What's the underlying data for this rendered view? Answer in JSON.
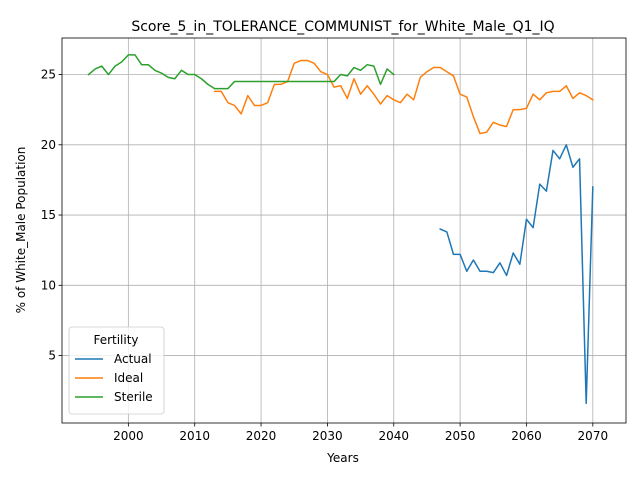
{
  "chart_data": {
    "type": "line",
    "title": "Score_5_in_TOLERANCE_COMMUNIST_for_White_Male_Q1_IQ",
    "xlabel": "Years",
    "ylabel": "% of White_Male Population",
    "xlim": [
      1990,
      2075
    ],
    "ylim": [
      0.2,
      27.6
    ],
    "xticks": [
      2000,
      2010,
      2020,
      2030,
      2040,
      2050,
      2060,
      2070
    ],
    "yticks": [
      5,
      10,
      15,
      20,
      25
    ],
    "grid": true,
    "legend": {
      "title": "Fertility",
      "position": "lower-left"
    },
    "series": [
      {
        "name": "Actual",
        "color": "#1f77b4",
        "x": [
          2047,
          2048,
          2049,
          2050,
          2051,
          2052,
          2053,
          2054,
          2055,
          2056,
          2057,
          2058,
          2059,
          2060,
          2061,
          2062,
          2063,
          2064,
          2065,
          2066,
          2067,
          2068,
          2069,
          2070
        ],
        "y": [
          14.0,
          13.8,
          12.2,
          12.2,
          11.0,
          11.8,
          11.0,
          11.0,
          10.9,
          11.6,
          10.7,
          12.3,
          11.5,
          14.7,
          14.1,
          17.2,
          16.7,
          19.6,
          19.0,
          20.0,
          18.4,
          19.0,
          1.6,
          17.0
        ]
      },
      {
        "name": "Ideal",
        "color": "#ff7f0e",
        "x": [
          2013,
          2014,
          2015,
          2016,
          2017,
          2018,
          2019,
          2020,
          2021,
          2022,
          2023,
          2024,
          2025,
          2026,
          2027,
          2028,
          2029,
          2030,
          2031,
          2032,
          2033,
          2034,
          2035,
          2036,
          2037,
          2038,
          2039,
          2040,
          2041,
          2042,
          2043,
          2044,
          2045,
          2046,
          2047,
          2048,
          2049,
          2050,
          2051,
          2052,
          2053,
          2054,
          2055,
          2056,
          2057,
          2058,
          2059,
          2060,
          2061,
          2062,
          2063,
          2064,
          2065,
          2066,
          2067,
          2068,
          2069,
          2070
        ],
        "y": [
          23.8,
          23.8,
          23.0,
          22.8,
          22.2,
          23.5,
          22.8,
          22.8,
          23.0,
          24.3,
          24.3,
          24.5,
          25.8,
          26.0,
          26.0,
          25.8,
          25.2,
          25.0,
          24.1,
          24.2,
          23.3,
          24.7,
          23.6,
          24.2,
          23.6,
          22.9,
          23.5,
          23.2,
          23.0,
          23.6,
          23.2,
          24.8,
          25.2,
          25.5,
          25.5,
          25.2,
          24.9,
          23.6,
          23.4,
          22.0,
          20.8,
          20.9,
          21.6,
          21.4,
          21.3,
          22.5,
          22.5,
          22.6,
          23.6,
          23.2,
          23.7,
          23.8,
          23.8,
          24.2,
          23.3,
          23.7,
          23.5,
          23.2
        ]
      },
      {
        "name": "Sterile",
        "color": "#2ca02c",
        "x": [
          1994,
          1995,
          1996,
          1997,
          1998,
          1999,
          2000,
          2001,
          2002,
          2003,
          2004,
          2005,
          2006,
          2007,
          2008,
          2009,
          2010,
          2011,
          2012,
          2013,
          2014,
          2015,
          2016,
          2017,
          2018,
          2019,
          2020,
          2021,
          2022,
          2023,
          2024,
          2025,
          2026,
          2027,
          2028,
          2029,
          2030,
          2031,
          2032,
          2033,
          2034,
          2035,
          2036,
          2037,
          2038,
          2039,
          2040
        ],
        "y": [
          25.0,
          25.4,
          25.6,
          25.0,
          25.6,
          25.9,
          26.4,
          26.4,
          25.7,
          25.7,
          25.3,
          25.1,
          24.8,
          24.7,
          25.3,
          25.0,
          25.0,
          24.7,
          24.3,
          24.0,
          24.0,
          24.0,
          24.5,
          24.5,
          24.5,
          24.5,
          24.5,
          24.5,
          24.5,
          24.5,
          24.5,
          24.5,
          24.5,
          24.5,
          24.5,
          24.5,
          24.5,
          24.5,
          25.0,
          24.9,
          25.5,
          25.3,
          25.7,
          25.6,
          24.3,
          25.4,
          25.0
        ]
      }
    ]
  }
}
